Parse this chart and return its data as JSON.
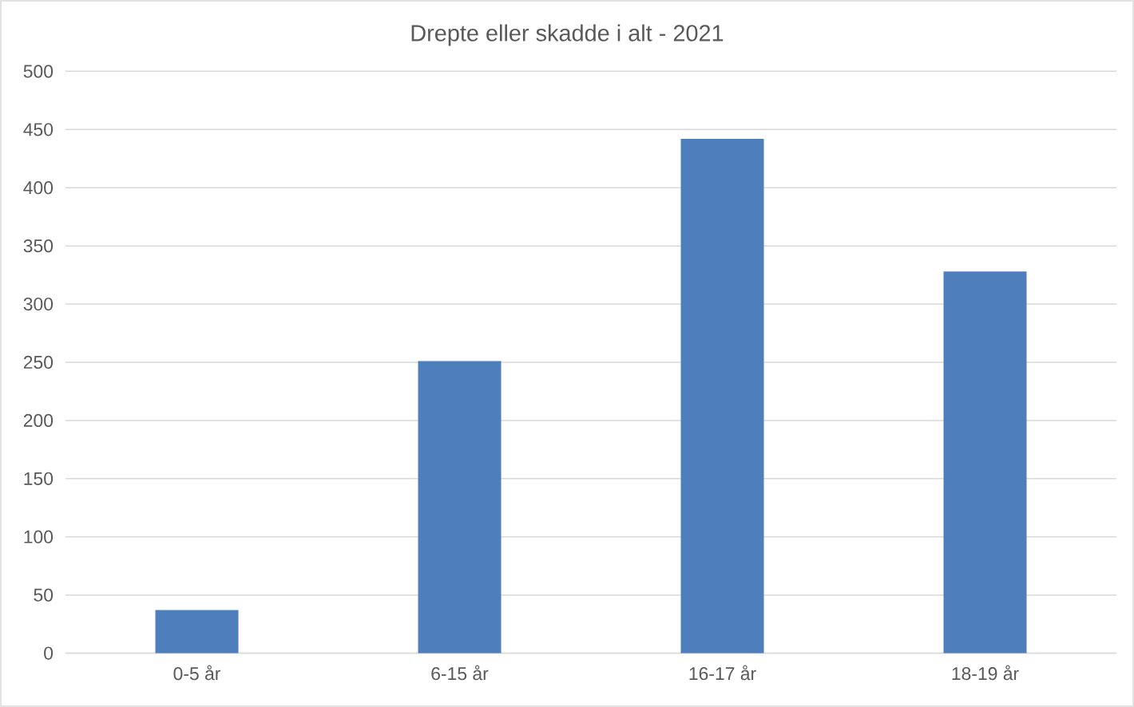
{
  "chart_data": {
    "type": "bar",
    "title": "Drepte eller skadde i alt - 2021",
    "categories": [
      "0-5 år",
      "6-15 år",
      "16-17 år",
      "18-19 år"
    ],
    "values": [
      37,
      251,
      442,
      328
    ],
    "color": "#4e7fbc",
    "ylim": [
      0,
      500
    ],
    "yticks": [
      0,
      50,
      100,
      150,
      200,
      250,
      300,
      350,
      400,
      450,
      500
    ],
    "grid": "y"
  }
}
